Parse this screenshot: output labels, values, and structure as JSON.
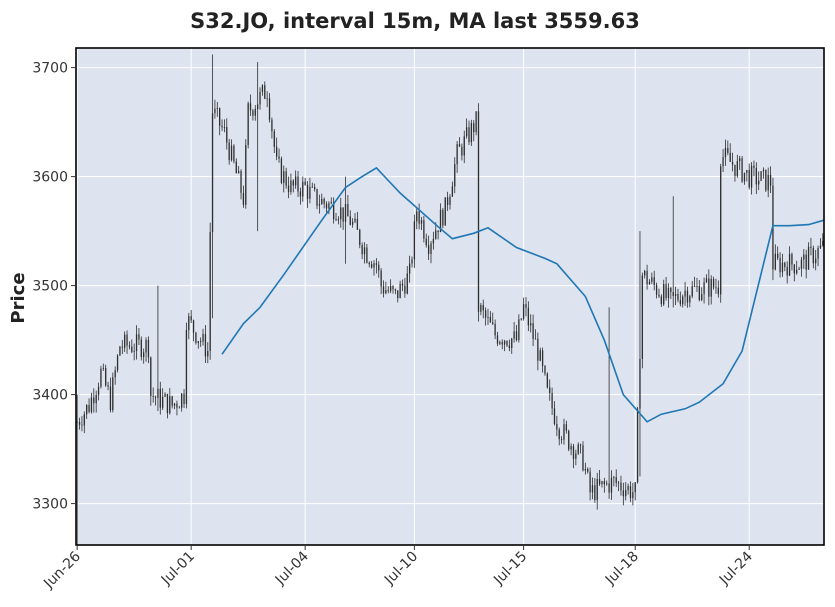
{
  "chart_data": {
    "type": "candlestick",
    "title": "S32.JO, interval 15m, MA last 3559.63",
    "xlabel": "",
    "ylabel": "Price",
    "ylim": [
      3262,
      3718
    ],
    "yticks": [
      3300,
      3400,
      3500,
      3600,
      3700
    ],
    "grid": true,
    "colors": {
      "background": "#dde3ef",
      "grid": "#ffffff",
      "candle": "#2e2e2e",
      "ma_line": "#1f77b4"
    },
    "x_ticks": [
      {
        "label": "Jun-26",
        "index": 0
      },
      {
        "label": "Jul-01",
        "index": 48
      },
      {
        "label": "Jul-04",
        "index": 96
      },
      {
        "label": "Jul-10",
        "index": 142
      },
      {
        "label": "Jul-15",
        "index": 188
      },
      {
        "label": "Jul-18",
        "index": 235
      },
      {
        "label": "Jul-24",
        "index": 283
      }
    ],
    "num_bars": 315,
    "close_anchors": [
      [
        0,
        3375
      ],
      [
        5,
        3390
      ],
      [
        10,
        3420
      ],
      [
        14,
        3395
      ],
      [
        18,
        3445
      ],
      [
        30,
        3445
      ],
      [
        31,
        3400
      ],
      [
        40,
        3390
      ],
      [
        45,
        3400
      ],
      [
        46,
        3470
      ],
      [
        52,
        3450
      ],
      [
        55,
        3440
      ],
      [
        57,
        3660
      ],
      [
        62,
        3640
      ],
      [
        70,
        3580
      ],
      [
        72,
        3660
      ],
      [
        80,
        3680
      ],
      [
        84,
        3610
      ],
      [
        90,
        3590
      ],
      [
        96,
        3590
      ],
      [
        100,
        3580
      ],
      [
        110,
        3570
      ],
      [
        115,
        3560
      ],
      [
        122,
        3530
      ],
      [
        126,
        3520
      ],
      [
        128,
        3500
      ],
      [
        134,
        3490
      ],
      [
        140,
        3510
      ],
      [
        143,
        3570
      ],
      [
        148,
        3540
      ],
      [
        155,
        3570
      ],
      [
        160,
        3620
      ],
      [
        168,
        3650
      ],
      [
        169,
        3480
      ],
      [
        176,
        3455
      ],
      [
        185,
        3450
      ],
      [
        188,
        3480
      ],
      [
        194,
        3440
      ],
      [
        198,
        3400
      ],
      [
        203,
        3370
      ],
      [
        213,
        3340
      ],
      [
        216,
        3310
      ],
      [
        226,
        3320
      ],
      [
        235,
        3310
      ],
      [
        238,
        3510
      ],
      [
        250,
        3485
      ],
      [
        256,
        3495
      ],
      [
        270,
        3500
      ],
      [
        271,
        3620
      ],
      [
        283,
        3600
      ],
      [
        292,
        3595
      ],
      [
        293,
        3520
      ],
      [
        305,
        3520
      ],
      [
        314,
        3535
      ]
    ],
    "ma_line": [
      [
        61,
        3437
      ],
      [
        70,
        3465
      ],
      [
        77,
        3480
      ],
      [
        87,
        3510
      ],
      [
        103,
        3560
      ],
      [
        113,
        3590
      ],
      [
        120,
        3600
      ],
      [
        126,
        3608
      ],
      [
        136,
        3585
      ],
      [
        152,
        3554
      ],
      [
        158,
        3543
      ],
      [
        167,
        3548
      ],
      [
        173,
        3553
      ],
      [
        185,
        3535
      ],
      [
        197,
        3525
      ],
      [
        202,
        3520
      ],
      [
        214,
        3490
      ],
      [
        222,
        3450
      ],
      [
        230,
        3400
      ],
      [
        240,
        3375
      ],
      [
        246,
        3382
      ],
      [
        256,
        3387
      ],
      [
        262,
        3393
      ],
      [
        272,
        3410
      ],
      [
        280,
        3440
      ],
      [
        293,
        3555
      ],
      [
        300,
        3555
      ],
      [
        308,
        3556
      ],
      [
        315,
        3560
      ]
    ],
    "spikes": [
      {
        "index": 0,
        "low": 3262,
        "high": 3400
      },
      {
        "index": 34,
        "low": 3385,
        "high": 3500
      },
      {
        "index": 57,
        "low": 3470,
        "high": 3712
      },
      {
        "index": 76,
        "low": 3550,
        "high": 3705
      },
      {
        "index": 113,
        "low": 3520,
        "high": 3600
      },
      {
        "index": 169,
        "low": 3470,
        "high": 3600
      },
      {
        "index": 224,
        "low": 3375,
        "high": 3480
      },
      {
        "index": 237,
        "low": 3325,
        "high": 3550
      },
      {
        "index": 251,
        "low": 3480,
        "high": 3582
      },
      {
        "index": 293,
        "low": 3505,
        "high": 3578
      }
    ]
  }
}
